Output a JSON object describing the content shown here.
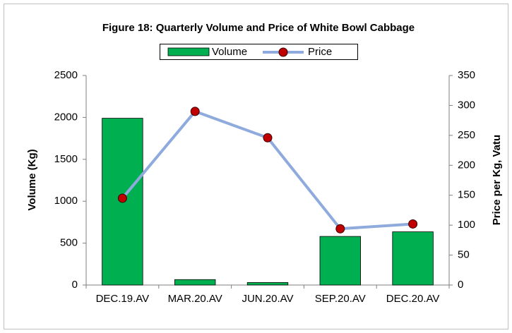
{
  "chart_data": {
    "type": "bar",
    "title": "Figure 18: Quarterly Volume and Price of White Bowl Cabbage",
    "categories": [
      "DEC.19.AV",
      "MAR.20.AV",
      "JUN.20.AV",
      "SEP.20.AV",
      "DEC.20.AV"
    ],
    "series": [
      {
        "name": "Volume",
        "type": "bar",
        "color": "#00b050",
        "values": [
          1990,
          65,
          30,
          580,
          635
        ]
      },
      {
        "name": "Price",
        "type": "line",
        "axis": "y2",
        "color": "#8faadc",
        "marker_color": "#c00000",
        "values": [
          145,
          290,
          246,
          94,
          102
        ]
      }
    ],
    "ylabel": "Volume (Kg)",
    "y2label": "Price per Kg, Vatu",
    "ylim": [
      0,
      2500
    ],
    "yticks": [
      0,
      500,
      1000,
      1500,
      2000,
      2500
    ],
    "y2lim": [
      0,
      350
    ],
    "y2ticks": [
      0,
      50,
      100,
      150,
      200,
      250,
      300,
      350
    ],
    "grid": false,
    "legend": "top"
  }
}
